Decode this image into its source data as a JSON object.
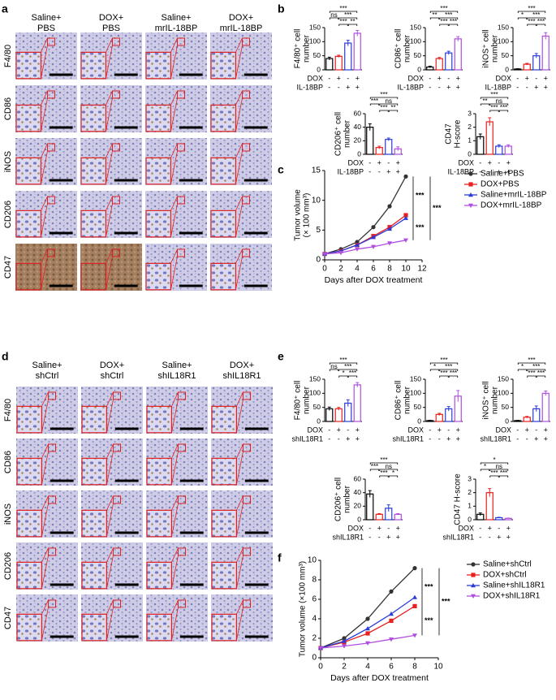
{
  "panel_labels": [
    "a",
    "b",
    "c",
    "d",
    "e",
    "f"
  ],
  "image_panels": [
    {
      "column_headers": [
        [
          "Saline+",
          "PBS"
        ],
        [
          "DOX+",
          "PBS"
        ],
        [
          "Saline+",
          "mrIL-18BP"
        ],
        [
          "DOX+",
          "mrIL-18BP"
        ]
      ],
      "row_labels": [
        "F4/80",
        "CD86",
        "iNOS",
        "CD206",
        "CD47"
      ]
    },
    {
      "column_headers": [
        [
          "Saline+",
          "shCtrl"
        ],
        [
          "DOX+",
          "shCtrl"
        ],
        [
          "Saline+",
          "shIL18R1"
        ],
        [
          "DOX+",
          "shIL18R1"
        ]
      ],
      "row_labels": [
        "F4/80",
        "CD86",
        "iNOS",
        "CD206",
        "CD47"
      ]
    }
  ],
  "chart_data": [
    {
      "type": "bar",
      "ylabel": [
        "F4/80⁺ cell",
        "number"
      ],
      "ylim": [
        0,
        150
      ],
      "yticks": [
        0,
        50,
        100,
        150
      ],
      "values": [
        40,
        48,
        95,
        130
      ],
      "errors": [
        5,
        4,
        10,
        10
      ],
      "colors": [
        "#000000",
        "#e8201e",
        "#2a3bd8",
        "#b04ee0"
      ],
      "comparisons": [
        {
          "pair": [
            0,
            3
          ],
          "label": "***"
        },
        {
          "pair": [
            0,
            1
          ],
          "label": "ns"
        },
        {
          "pair": [
            1,
            3
          ],
          "label": "***"
        },
        {
          "pair": [
            1,
            2
          ],
          "label": "***"
        },
        {
          "pair": [
            2,
            3
          ],
          "label": "**"
        }
      ],
      "conditions": [
        {
          "label": "DOX",
          "signs": [
            "-",
            "+",
            "-",
            "+"
          ]
        },
        {
          "label": "IL-18BP",
          "signs": [
            "-",
            "-",
            "+",
            "+"
          ]
        }
      ]
    },
    {
      "type": "bar",
      "ylabel": [
        "CD86⁺ cell",
        "number"
      ],
      "ylim": [
        0,
        150
      ],
      "yticks": [
        0,
        50,
        100,
        150
      ],
      "values": [
        10,
        40,
        60,
        110
      ],
      "errors": [
        3,
        4,
        6,
        8
      ],
      "colors": [
        "#000000",
        "#e8201e",
        "#2a3bd8",
        "#b04ee0"
      ],
      "comparisons": [
        {
          "pair": [
            0,
            3
          ],
          "label": "***"
        },
        {
          "pair": [
            0,
            1
          ],
          "label": "**"
        },
        {
          "pair": [
            1,
            3
          ],
          "label": "***"
        },
        {
          "pair": [
            1,
            2
          ],
          "label": "***"
        },
        {
          "pair": [
            2,
            3
          ],
          "label": "***"
        }
      ],
      "conditions": [
        {
          "label": "DOX",
          "signs": [
            "-",
            "+",
            "-",
            "+"
          ]
        },
        {
          "label": "IL-18BP",
          "signs": [
            "-",
            "-",
            "+",
            "+"
          ]
        }
      ]
    },
    {
      "type": "bar",
      "ylabel": [
        "iNOS⁺ cell",
        "number"
      ],
      "ylim": [
        0,
        150
      ],
      "yticks": [
        0,
        50,
        100,
        150
      ],
      "values": [
        3,
        20,
        50,
        120
      ],
      "errors": [
        1,
        3,
        8,
        12
      ],
      "colors": [
        "#000000",
        "#e8201e",
        "#2a3bd8",
        "#b04ee0"
      ],
      "comparisons": [
        {
          "pair": [
            0,
            3
          ],
          "label": "***"
        },
        {
          "pair": [
            0,
            1
          ],
          "label": "*"
        },
        {
          "pair": [
            1,
            3
          ],
          "label": "***"
        },
        {
          "pair": [
            1,
            2
          ],
          "label": "***"
        },
        {
          "pair": [
            2,
            3
          ],
          "label": "***"
        }
      ],
      "conditions": [
        {
          "label": "DOX",
          "signs": [
            "-",
            "+",
            "-",
            "+"
          ]
        },
        {
          "label": "IL-18BP",
          "signs": [
            "-",
            "-",
            "+",
            "+"
          ]
        }
      ]
    },
    {
      "type": "bar",
      "ylabel": [
        "CD206⁺ cell",
        "number"
      ],
      "ylim": [
        0,
        60
      ],
      "yticks": [
        0,
        20,
        40,
        60
      ],
      "values": [
        40,
        10,
        22,
        8
      ],
      "errors": [
        5,
        2,
        2,
        3
      ],
      "colors": [
        "#000000",
        "#e8201e",
        "#2a3bd8",
        "#b04ee0"
      ],
      "comparisons": [
        {
          "pair": [
            0,
            3
          ],
          "label": "***"
        },
        {
          "pair": [
            0,
            1
          ],
          "label": "***"
        },
        {
          "pair": [
            1,
            3
          ],
          "label": "ns"
        },
        {
          "pair": [
            1,
            2
          ],
          "label": "***"
        },
        {
          "pair": [
            2,
            3
          ],
          "label": "**"
        }
      ],
      "conditions": [
        {
          "label": "DOX",
          "signs": [
            "-",
            "+",
            "-",
            "+"
          ]
        },
        {
          "label": "IL-18BP",
          "signs": [
            "-",
            "-",
            "+",
            "+"
          ]
        }
      ]
    },
    {
      "type": "bar",
      "ylabel": [
        "CD47",
        "H-score"
      ],
      "ylim": [
        0,
        3
      ],
      "yticks": [
        0,
        1,
        2,
        3
      ],
      "values": [
        1.3,
        2.4,
        0.6,
        0.6
      ],
      "errors": [
        0.2,
        0.3,
        0.1,
        0.1
      ],
      "colors": [
        "#000000",
        "#e8201e",
        "#2a3bd8",
        "#b04ee0"
      ],
      "comparisons": [
        {
          "pair": [
            0,
            3
          ],
          "label": "***"
        },
        {
          "pair": [
            0,
            1
          ],
          "label": "**"
        },
        {
          "pair": [
            1,
            3
          ],
          "label": "ns"
        },
        {
          "pair": [
            1,
            2
          ],
          "label": "***"
        },
        {
          "pair": [
            2,
            3
          ],
          "label": "***"
        }
      ],
      "conditions": [
        {
          "label": "DOX",
          "signs": [
            "-",
            "+",
            "-",
            "+"
          ]
        },
        {
          "label": "IL-18BP",
          "signs": [
            "-",
            "-",
            "+",
            "+"
          ]
        }
      ]
    },
    {
      "type": "line",
      "ylabel": [
        "Tumor volume",
        "(× 100 mm³)"
      ],
      "xlabel": "Days after DOX treatment",
      "x": [
        0,
        2,
        4,
        6,
        8,
        10
      ],
      "xlim": [
        0,
        12
      ],
      "xticks": [
        0,
        2,
        4,
        6,
        8,
        10,
        12
      ],
      "ylim": [
        0,
        15
      ],
      "yticks": [
        0,
        5,
        10,
        15
      ],
      "series": [
        {
          "name": "Saline+PBS",
          "color": "#333333",
          "marker": "circle",
          "values": [
            1,
            1.8,
            3,
            5.5,
            9,
            14
          ]
        },
        {
          "name": "DOX+PBS",
          "color": "#e8201e",
          "marker": "square",
          "values": [
            1,
            1.5,
            2.5,
            4,
            5.5,
            7.5
          ]
        },
        {
          "name": "Saline+mrIL-18BP",
          "color": "#2a3bd8",
          "marker": "triangle",
          "values": [
            1,
            1.5,
            2.5,
            3.8,
            5.2,
            7
          ]
        },
        {
          "name": "DOX+mrIL-18BP",
          "color": "#b04ee0",
          "marker": "triangle-down",
          "values": [
            1,
            1.2,
            1.8,
            2.2,
            2.8,
            3.3
          ]
        }
      ],
      "annotations": [
        "***",
        "***",
        "***"
      ]
    },
    {
      "type": "bar",
      "ylabel": [
        "F4/80⁺ cell",
        "number"
      ],
      "ylim": [
        0,
        150
      ],
      "yticks": [
        0,
        50,
        100,
        150
      ],
      "values": [
        45,
        45,
        65,
        130
      ],
      "errors": [
        6,
        5,
        12,
        8
      ],
      "colors": [
        "#000000",
        "#e8201e",
        "#2a3bd8",
        "#b04ee0"
      ],
      "comparisons": [
        {
          "pair": [
            0,
            3
          ],
          "label": "***"
        },
        {
          "pair": [
            0,
            1
          ],
          "label": "ns"
        },
        {
          "pair": [
            1,
            3
          ],
          "label": "***"
        },
        {
          "pair": [
            1,
            2
          ],
          "label": "*"
        },
        {
          "pair": [
            2,
            3
          ],
          "label": "***"
        }
      ],
      "conditions": [
        {
          "label": "DOX",
          "signs": [
            "-",
            "+",
            "-",
            "+"
          ]
        },
        {
          "label": "shIL18R1",
          "signs": [
            "-",
            "-",
            "+",
            "+"
          ]
        }
      ]
    },
    {
      "type": "bar",
      "ylabel": [
        "CD86⁺ cell",
        "number"
      ],
      "ylim": [
        0,
        150
      ],
      "yticks": [
        0,
        50,
        100,
        150
      ],
      "values": [
        3,
        25,
        45,
        90
      ],
      "errors": [
        1,
        4,
        8,
        20
      ],
      "colors": [
        "#000000",
        "#e8201e",
        "#2a3bd8",
        "#b04ee0"
      ],
      "comparisons": [
        {
          "pair": [
            0,
            3
          ],
          "label": "***"
        },
        {
          "pair": [
            0,
            1
          ],
          "label": "*"
        },
        {
          "pair": [
            1,
            3
          ],
          "label": "***"
        },
        {
          "pair": [
            1,
            2
          ],
          "label": "***"
        },
        {
          "pair": [
            2,
            3
          ],
          "label": "***"
        }
      ],
      "conditions": [
        {
          "label": "DOX",
          "signs": [
            "-",
            "+",
            "-",
            "+"
          ]
        },
        {
          "label": "shIL18R1",
          "signs": [
            "-",
            "-",
            "+",
            "+"
          ]
        }
      ]
    },
    {
      "type": "bar",
      "ylabel": [
        "iNOS⁺ cell",
        "number"
      ],
      "ylim": [
        0,
        150
      ],
      "yticks": [
        0,
        50,
        100,
        150
      ],
      "values": [
        3,
        15,
        45,
        100
      ],
      "errors": [
        1,
        3,
        10,
        8
      ],
      "colors": [
        "#000000",
        "#e8201e",
        "#2a3bd8",
        "#b04ee0"
      ],
      "comparisons": [
        {
          "pair": [
            0,
            3
          ],
          "label": "***"
        },
        {
          "pair": [
            0,
            1
          ],
          "label": "*"
        },
        {
          "pair": [
            1,
            3
          ],
          "label": "***"
        },
        {
          "pair": [
            1,
            2
          ],
          "label": "***"
        },
        {
          "pair": [
            2,
            3
          ],
          "label": "***"
        }
      ],
      "conditions": [
        {
          "label": "DOX",
          "signs": [
            "-",
            "+",
            "-",
            "+"
          ]
        },
        {
          "label": "shIL18R1",
          "signs": [
            "-",
            "-",
            "+",
            "+"
          ]
        }
      ]
    },
    {
      "type": "bar",
      "ylabel": [
        "CD206⁺ cell",
        "number"
      ],
      "ylim": [
        0,
        60
      ],
      "yticks": [
        0,
        20,
        40,
        60
      ],
      "values": [
        38,
        8,
        17,
        8
      ],
      "errors": [
        5,
        1,
        5,
        1
      ],
      "colors": [
        "#000000",
        "#e8201e",
        "#2a3bd8",
        "#b04ee0"
      ],
      "comparisons": [
        {
          "pair": [
            0,
            3
          ],
          "label": "***"
        },
        {
          "pair": [
            0,
            1
          ],
          "label": "***"
        },
        {
          "pair": [
            1,
            3
          ],
          "label": "ns"
        },
        {
          "pair": [
            1,
            2
          ],
          "label": "***"
        },
        {
          "pair": [
            2,
            3
          ],
          "label": "*"
        }
      ],
      "conditions": [
        {
          "label": "DOX",
          "signs": [
            "-",
            "+",
            "-",
            "+"
          ]
        },
        {
          "label": "shIL18R1",
          "signs": [
            "-",
            "-",
            "+",
            "+"
          ]
        }
      ]
    },
    {
      "type": "bar",
      "ylabel": [
        "CD47 H-score"
      ],
      "ylim": [
        0,
        3
      ],
      "yticks": [
        0,
        1,
        2,
        3
      ],
      "values": [
        0.4,
        2,
        0.15,
        0.1
      ],
      "errors": [
        0.1,
        0.3,
        0.03,
        0.02
      ],
      "colors": [
        "#000000",
        "#e8201e",
        "#2a3bd8",
        "#b04ee0"
      ],
      "comparisons": [
        {
          "pair": [
            0,
            3
          ],
          "label": "*"
        },
        {
          "pair": [
            0,
            1
          ],
          "label": "*"
        },
        {
          "pair": [
            1,
            3
          ],
          "label": "ns"
        },
        {
          "pair": [
            1,
            2
          ],
          "label": "***"
        },
        {
          "pair": [
            2,
            3
          ],
          "label": "***"
        }
      ],
      "conditions": [
        {
          "label": "DOX",
          "signs": [
            "-",
            "+",
            "-",
            "+"
          ]
        },
        {
          "label": "shIL18R1",
          "signs": [
            "-",
            "-",
            "+",
            "+"
          ]
        }
      ]
    },
    {
      "type": "line",
      "ylabel": [
        "Tumor volume (×100 mm³)"
      ],
      "xlabel": "Days after DOX treatment",
      "x": [
        0,
        2,
        4,
        6,
        8
      ],
      "xlim": [
        0,
        10
      ],
      "xticks": [
        0,
        2,
        4,
        6,
        8,
        10
      ],
      "ylim": [
        0,
        10
      ],
      "yticks": [
        0,
        2,
        4,
        6,
        8,
        10
      ],
      "series": [
        {
          "name": "Saline+shCtrl",
          "color": "#333333",
          "marker": "circle",
          "values": [
            1,
            2,
            4,
            6.8,
            9.2
          ]
        },
        {
          "name": "DOX+shCtrl",
          "color": "#e8201e",
          "marker": "square",
          "values": [
            1,
            1.6,
            2.5,
            3.8,
            5.3
          ]
        },
        {
          "name": "Saline+shIL18R1",
          "color": "#2a3bd8",
          "marker": "triangle",
          "values": [
            1,
            1.7,
            3,
            4.5,
            6.2
          ]
        },
        {
          "name": "DOX+shIL18R1",
          "color": "#b04ee0",
          "marker": "triangle-down",
          "values": [
            1,
            1.2,
            1.5,
            1.9,
            2.3
          ]
        }
      ],
      "annotations": [
        "***",
        "***",
        "***"
      ]
    }
  ]
}
